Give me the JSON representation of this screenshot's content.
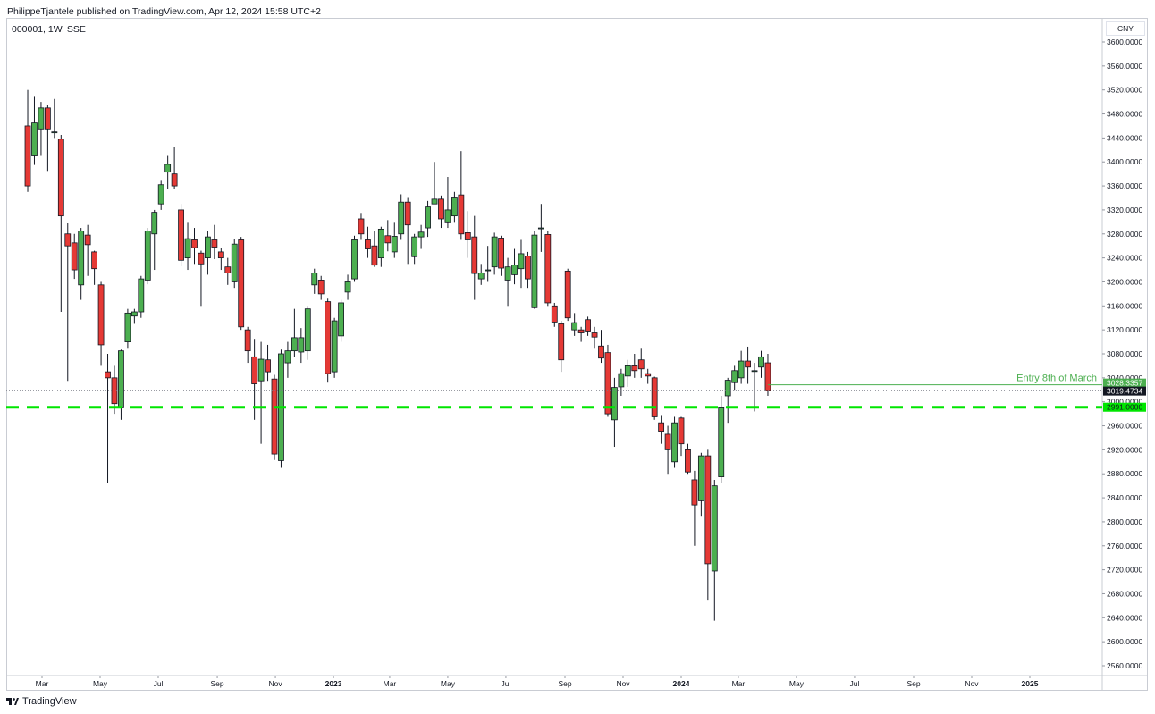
{
  "header": {
    "text": "PhilippeTjantele published on TradingView.com, Apr 12, 2024 15:58 UTC+2"
  },
  "symbol": {
    "text": "000001, 1W, SSE"
  },
  "currency": "CNY",
  "footer": {
    "brand": "TradingView"
  },
  "colors": {
    "up": "#4caf50",
    "down": "#e53935",
    "support_line": "#00e600",
    "entry_line": "#4caf50",
    "current_price_bg": "#131722"
  },
  "chart_data": {
    "type": "candlestick",
    "title": "",
    "ylim": [
      2540,
      3620
    ],
    "y_ticks": [
      "3600.0000",
      "3560.0000",
      "3520.0000",
      "3480.0000",
      "3440.0000",
      "3400.0000",
      "3360.0000",
      "3320.0000",
      "3280.0000",
      "3240.0000",
      "3200.0000",
      "3160.0000",
      "3120.0000",
      "3080.0000",
      "3040.0000",
      "3000.0000",
      "2960.0000",
      "2920.0000",
      "2880.0000",
      "2840.0000",
      "2800.0000",
      "2760.0000",
      "2720.0000",
      "2680.0000",
      "2640.0000",
      "2600.0000",
      "2560.0000"
    ],
    "x_ticks": [
      {
        "label": "Mar",
        "t": "2022-03-01",
        "bold": false
      },
      {
        "label": "May",
        "t": "2022-05-01",
        "bold": false
      },
      {
        "label": "Jul",
        "t": "2022-07-01",
        "bold": false
      },
      {
        "label": "Sep",
        "t": "2022-09-01",
        "bold": false
      },
      {
        "label": "Nov",
        "t": "2022-11-01",
        "bold": false
      },
      {
        "label": "2023",
        "t": "2023-01-01",
        "bold": true
      },
      {
        "label": "Mar",
        "t": "2023-03-01",
        "bold": false
      },
      {
        "label": "May",
        "t": "2023-05-01",
        "bold": false
      },
      {
        "label": "Jul",
        "t": "2023-07-01",
        "bold": false
      },
      {
        "label": "Sep",
        "t": "2023-09-01",
        "bold": false
      },
      {
        "label": "Nov",
        "t": "2023-11-01",
        "bold": false
      },
      {
        "label": "2024",
        "t": "2024-01-01",
        "bold": true
      },
      {
        "label": "Mar",
        "t": "2024-03-01",
        "bold": false
      },
      {
        "label": "May",
        "t": "2024-05-01",
        "bold": false
      },
      {
        "label": "Jul",
        "t": "2024-07-01",
        "bold": false
      },
      {
        "label": "Sep",
        "t": "2024-09-01",
        "bold": false
      },
      {
        "label": "Nov",
        "t": "2024-11-01",
        "bold": false
      },
      {
        "label": "2025",
        "t": "2025-01-01",
        "bold": true
      }
    ],
    "candles": [
      {
        "o": 3460,
        "c": 3360,
        "h": 3520,
        "l": 3350
      },
      {
        "o": 3410,
        "c": 3465,
        "h": 3510,
        "l": 3395
      },
      {
        "o": 3455,
        "c": 3490,
        "h": 3500,
        "l": 3410
      },
      {
        "o": 3490,
        "c": 3455,
        "h": 3495,
        "l": 3385
      },
      {
        "o": 3450,
        "c": 3450,
        "h": 3505,
        "l": 3440
      },
      {
        "o": 3438,
        "c": 3310,
        "h": 3445,
        "l": 3150
      },
      {
        "o": 3280,
        "c": 3260,
        "h": 3298,
        "l": 3035
      },
      {
        "o": 3265,
        "c": 3220,
        "h": 3280,
        "l": 3205
      },
      {
        "o": 3195,
        "c": 3285,
        "h": 3290,
        "l": 3170
      },
      {
        "o": 3278,
        "c": 3262,
        "h": 3295,
        "l": 3210
      },
      {
        "o": 3250,
        "c": 3222,
        "h": 3252,
        "l": 3195
      },
      {
        "o": 3195,
        "c": 3095,
        "h": 3200,
        "l": 3060
      },
      {
        "o": 3050,
        "c": 3040,
        "h": 3080,
        "l": 2865
      },
      {
        "o": 3040,
        "c": 2997,
        "h": 3060,
        "l": 2980
      },
      {
        "o": 2990,
        "c": 3085,
        "h": 3087,
        "l": 2970
      },
      {
        "o": 3100,
        "c": 3148,
        "h": 3155,
        "l": 3090
      },
      {
        "o": 3143,
        "c": 3150,
        "h": 3155,
        "l": 3130
      },
      {
        "o": 3150,
        "c": 3205,
        "h": 3210,
        "l": 3140
      },
      {
        "o": 3203,
        "c": 3285,
        "h": 3290,
        "l": 3196
      },
      {
        "o": 3280,
        "c": 3316,
        "h": 3320,
        "l": 3220
      },
      {
        "o": 3330,
        "c": 3362,
        "h": 3370,
        "l": 3320
      },
      {
        "o": 3383,
        "c": 3396,
        "h": 3410,
        "l": 3355
      },
      {
        "o": 3380,
        "c": 3360,
        "h": 3425,
        "l": 3355
      },
      {
        "o": 3320,
        "c": 3236,
        "h": 3330,
        "l": 3226
      },
      {
        "o": 3240,
        "c": 3272,
        "h": 3300,
        "l": 3220
      },
      {
        "o": 3270,
        "c": 3257,
        "h": 3290,
        "l": 3230
      },
      {
        "o": 3248,
        "c": 3230,
        "h": 3252,
        "l": 3160
      },
      {
        "o": 3240,
        "c": 3275,
        "h": 3285,
        "l": 3212
      },
      {
        "o": 3270,
        "c": 3258,
        "h": 3295,
        "l": 3238
      },
      {
        "o": 3250,
        "c": 3240,
        "h": 3256,
        "l": 3220
      },
      {
        "o": 3225,
        "c": 3215,
        "h": 3240,
        "l": 3195
      },
      {
        "o": 3200,
        "c": 3263,
        "h": 3272,
        "l": 3190
      },
      {
        "o": 3270,
        "c": 3125,
        "h": 3275,
        "l": 3120
      },
      {
        "o": 3120,
        "c": 3085,
        "h": 3125,
        "l": 3065
      },
      {
        "o": 3075,
        "c": 3030,
        "h": 3105,
        "l": 2970
      },
      {
        "o": 3035,
        "c": 3071,
        "h": 3100,
        "l": 2930
      },
      {
        "o": 3070,
        "c": 3050,
        "h": 3095,
        "l": 3035
      },
      {
        "o": 3038,
        "c": 2913,
        "h": 3045,
        "l": 2903
      },
      {
        "o": 2902,
        "c": 3080,
        "h": 3087,
        "l": 2890
      },
      {
        "o": 3065,
        "c": 3085,
        "h": 3100,
        "l": 3040
      },
      {
        "o": 3085,
        "c": 3107,
        "h": 3155,
        "l": 3075
      },
      {
        "o": 3083,
        "c": 3107,
        "h": 3123,
        "l": 3065
      },
      {
        "o": 3085,
        "c": 3155,
        "h": 3160,
        "l": 3070
      },
      {
        "o": 3195,
        "c": 3215,
        "h": 3222,
        "l": 3180
      },
      {
        "o": 3203,
        "c": 3180,
        "h": 3210,
        "l": 3170
      },
      {
        "o": 3167,
        "c": 3047,
        "h": 3172,
        "l": 3032
      },
      {
        "o": 3050,
        "c": 3135,
        "h": 3140,
        "l": 3040
      },
      {
        "o": 3110,
        "c": 3165,
        "h": 3170,
        "l": 3100
      },
      {
        "o": 3183,
        "c": 3200,
        "h": 3212,
        "l": 3170
      },
      {
        "o": 3205,
        "c": 3270,
        "h": 3277,
        "l": 3200
      },
      {
        "o": 3305,
        "c": 3280,
        "h": 3315,
        "l": 3270
      },
      {
        "o": 3270,
        "c": 3255,
        "h": 3292,
        "l": 3240
      },
      {
        "o": 3260,
        "c": 3228,
        "h": 3285,
        "l": 3225
      },
      {
        "o": 3240,
        "c": 3288,
        "h": 3292,
        "l": 3225
      },
      {
        "o": 3277,
        "c": 3265,
        "h": 3303,
        "l": 3251
      },
      {
        "o": 3250,
        "c": 3276,
        "h": 3300,
        "l": 3240
      },
      {
        "o": 3280,
        "c": 3333,
        "h": 3346,
        "l": 3270
      },
      {
        "o": 3333,
        "c": 3295,
        "h": 3340,
        "l": 3230
      },
      {
        "o": 3242,
        "c": 3275,
        "h": 3280,
        "l": 3230
      },
      {
        "o": 3275,
        "c": 3283,
        "h": 3295,
        "l": 3255
      },
      {
        "o": 3290,
        "c": 3325,
        "h": 3335,
        "l": 3275
      },
      {
        "o": 3330,
        "c": 3338,
        "h": 3400,
        "l": 3330
      },
      {
        "o": 3338,
        "c": 3305,
        "h": 3344,
        "l": 3290
      },
      {
        "o": 3300,
        "c": 3320,
        "h": 3375,
        "l": 3290
      },
      {
        "o": 3310,
        "c": 3340,
        "h": 3350,
        "l": 3300
      },
      {
        "o": 3345,
        "c": 3280,
        "h": 3418,
        "l": 3270
      },
      {
        "o": 3282,
        "c": 3270,
        "h": 3318,
        "l": 3240
      },
      {
        "o": 3275,
        "c": 3214,
        "h": 3310,
        "l": 3170
      },
      {
        "o": 3205,
        "c": 3215,
        "h": 3230,
        "l": 3195
      },
      {
        "o": 3220,
        "c": 3220,
        "h": 3260,
        "l": 3200
      },
      {
        "o": 3225,
        "c": 3275,
        "h": 3282,
        "l": 3212
      },
      {
        "o": 3273,
        "c": 3223,
        "h": 3277,
        "l": 3210
      },
      {
        "o": 3203,
        "c": 3225,
        "h": 3240,
        "l": 3160
      },
      {
        "o": 3212,
        "c": 3228,
        "h": 3255,
        "l": 3196
      },
      {
        "o": 3222,
        "c": 3247,
        "h": 3270,
        "l": 3190
      },
      {
        "o": 3243,
        "c": 3205,
        "h": 3250,
        "l": 3190
      },
      {
        "o": 3157,
        "c": 3278,
        "h": 3285,
        "l": 3155
      },
      {
        "o": 3290,
        "c": 3290,
        "h": 3330,
        "l": 3250
      },
      {
        "o": 3279,
        "c": 3165,
        "h": 3285,
        "l": 3160
      },
      {
        "o": 3160,
        "c": 3133,
        "h": 3165,
        "l": 3125
      },
      {
        "o": 3130,
        "c": 3070,
        "h": 3135,
        "l": 3050
      },
      {
        "o": 3218,
        "c": 3140,
        "h": 3222,
        "l": 3135
      },
      {
        "o": 3120,
        "c": 3132,
        "h": 3148,
        "l": 3110
      },
      {
        "o": 3120,
        "c": 3115,
        "h": 3125,
        "l": 3100
      },
      {
        "o": 3137,
        "c": 3118,
        "h": 3142,
        "l": 3110
      },
      {
        "o": 3115,
        "c": 3108,
        "h": 3125,
        "l": 3090
      },
      {
        "o": 3093,
        "c": 3073,
        "h": 3120,
        "l": 3065
      },
      {
        "o": 3082,
        "c": 2980,
        "h": 3095,
        "l": 2975
      },
      {
        "o": 2970,
        "c": 3024,
        "h": 3040,
        "l": 2925
      },
      {
        "o": 3025,
        "c": 3047,
        "h": 3055,
        "l": 3010
      },
      {
        "o": 3043,
        "c": 3060,
        "h": 3070,
        "l": 3025
      },
      {
        "o": 3060,
        "c": 3052,
        "h": 3080,
        "l": 3040
      },
      {
        "o": 3070,
        "c": 3055,
        "h": 3090,
        "l": 3040
      },
      {
        "o": 3047,
        "c": 3043,
        "h": 3055,
        "l": 3030
      },
      {
        "o": 3040,
        "c": 2975,
        "h": 3042,
        "l": 2970
      },
      {
        "o": 2965,
        "c": 2951,
        "h": 2978,
        "l": 2930
      },
      {
        "o": 2946,
        "c": 2920,
        "h": 2960,
        "l": 2880
      },
      {
        "o": 2900,
        "c": 2965,
        "h": 2975,
        "l": 2890
      },
      {
        "o": 2973,
        "c": 2930,
        "h": 2975,
        "l": 2910
      },
      {
        "o": 2920,
        "c": 2883,
        "h": 2930,
        "l": 2880
      },
      {
        "o": 2870,
        "c": 2828,
        "h": 2885,
        "l": 2760
      },
      {
        "o": 2835,
        "c": 2910,
        "h": 2915,
        "l": 2810
      },
      {
        "o": 2910,
        "c": 2730,
        "h": 2920,
        "l": 2670
      },
      {
        "o": 2718,
        "c": 2860,
        "h": 2870,
        "l": 2635
      },
      {
        "o": 2875,
        "c": 2990,
        "h": 3010,
        "l": 2865
      },
      {
        "o": 3010,
        "c": 3036,
        "h": 3040,
        "l": 2965
      },
      {
        "o": 3032,
        "c": 3052,
        "h": 3060,
        "l": 3020
      },
      {
        "o": 3040,
        "c": 3068,
        "h": 3085,
        "l": 3030
      },
      {
        "o": 3068,
        "c": 3058,
        "h": 3092,
        "l": 3030
      },
      {
        "o": 3052,
        "c": 3052,
        "h": 3065,
        "l": 2984
      },
      {
        "o": 3058,
        "c": 3075,
        "h": 3085,
        "l": 3040
      },
      {
        "o": 3065,
        "c": 3019,
        "h": 3080,
        "l": 3010
      }
    ],
    "support_line": {
      "value": 2991.0,
      "label": "2991.0000"
    },
    "entry_line": {
      "value": 3028.3357,
      "label": "3028.3357",
      "text": "Entry 8th of March"
    },
    "last_price": {
      "value": 3019.4734,
      "label": "3019.4734"
    }
  }
}
